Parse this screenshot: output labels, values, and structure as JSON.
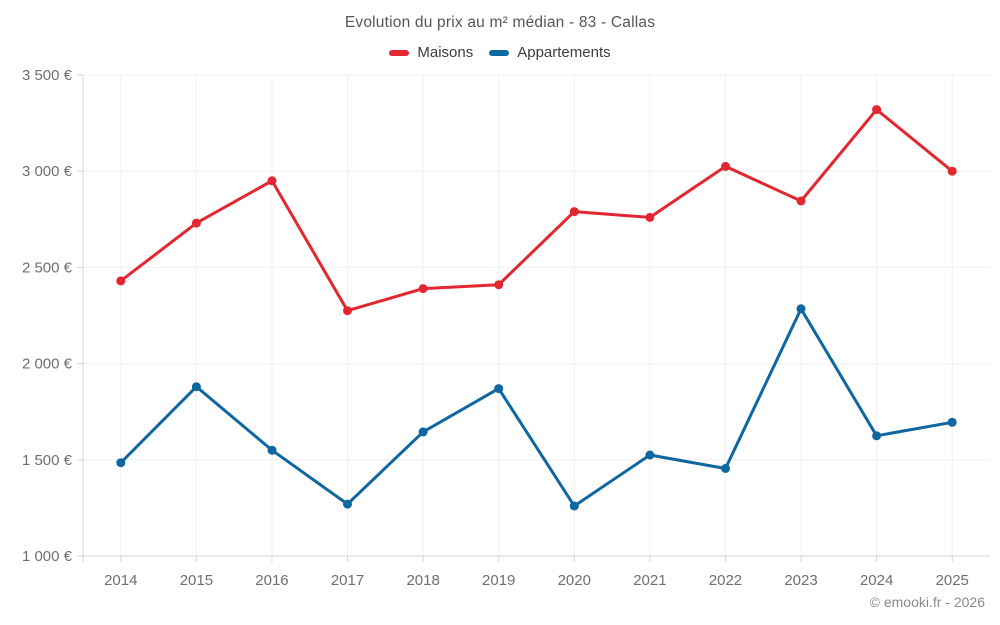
{
  "header": {
    "title": "Evolution du prix au m² médian - 83 - Callas"
  },
  "footer": {
    "credit": "© emooki.fr - 2026"
  },
  "colors": {
    "maisons": "#e22730",
    "appartements": "#0f67a1",
    "grid": "#f0f0f0",
    "axis": "#d6d6d6",
    "tick_text": "#6f6f6f",
    "title_text": "#565656",
    "legend_text": "#3d3d3d",
    "credit_text": "#8a8a8a",
    "background": "#ffffff"
  },
  "chart_data": {
    "type": "line",
    "title": "Evolution du prix au m² médian - 83 - Callas",
    "categories": [
      "2014",
      "2015",
      "2016",
      "2017",
      "2018",
      "2019",
      "2020",
      "2021",
      "2022",
      "2023",
      "2024",
      "2025"
    ],
    "series": [
      {
        "name": "Maisons",
        "color": "#e22730",
        "values": [
          2430,
          2730,
          2950,
          2275,
          2390,
          2410,
          2790,
          2760,
          3025,
          2845,
          3320,
          3000
        ]
      },
      {
        "name": "Appartements",
        "color": "#0f67a1",
        "values": [
          1485,
          1880,
          1550,
          1270,
          1645,
          1870,
          1260,
          1525,
          1455,
          2285,
          1625,
          1695
        ]
      }
    ],
    "xlabel": "",
    "ylabel": "",
    "ylim": [
      1000,
      3500
    ],
    "ytick_step": 500,
    "ytick_labels": [
      "1 000 €",
      "1 500 €",
      "2 000 €",
      "2 500 €",
      "3 000 €",
      "3 500 €"
    ],
    "grid": true,
    "legend_position": "top",
    "unit": "€"
  }
}
